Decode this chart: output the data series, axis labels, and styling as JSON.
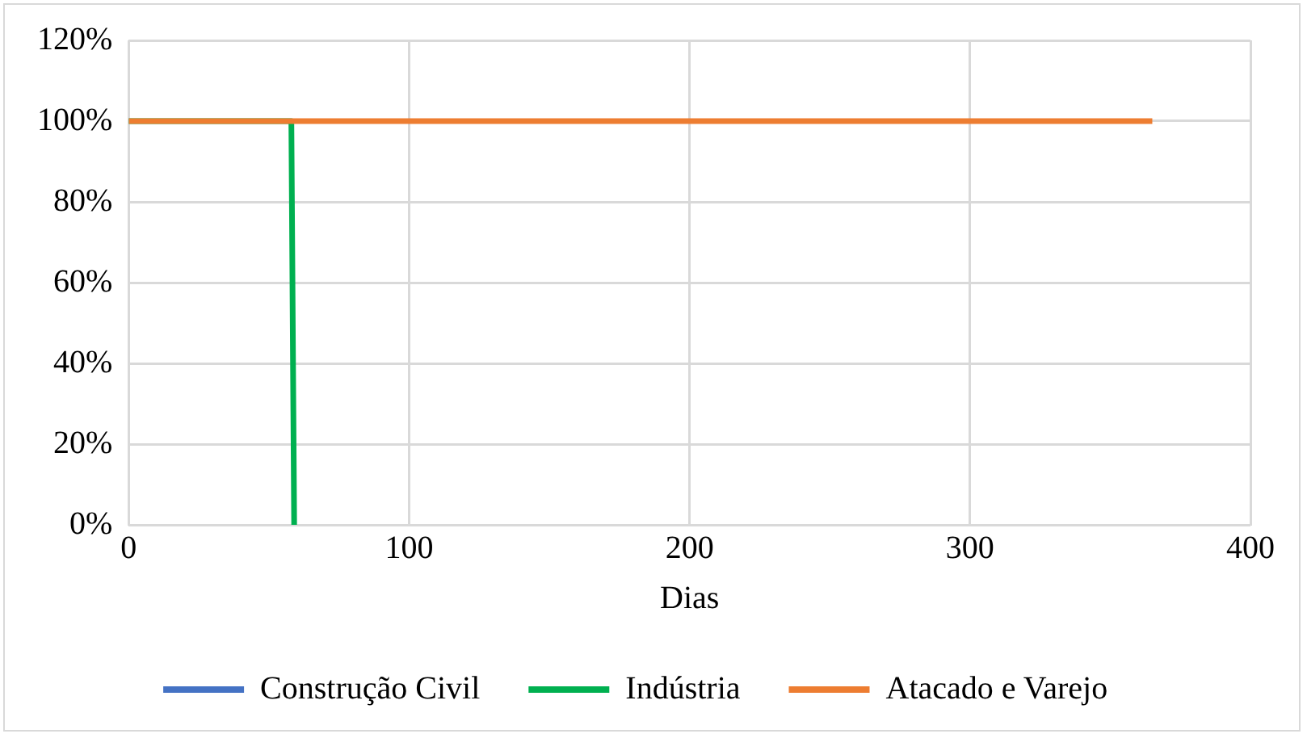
{
  "chart_data": {
    "type": "line",
    "xlabel": "Dias",
    "xlim": [
      0,
      400
    ],
    "xticks": [
      0,
      100,
      200,
      300,
      400
    ],
    "ylim": [
      0,
      120
    ],
    "yticks": [
      {
        "value": 0,
        "label": "0%"
      },
      {
        "value": 20,
        "label": "20%"
      },
      {
        "value": 40,
        "label": "40%"
      },
      {
        "value": 60,
        "label": "60%"
      },
      {
        "value": 80,
        "label": "80%"
      },
      {
        "value": 100,
        "label": "100%"
      },
      {
        "value": 120,
        "label": "120%"
      }
    ],
    "series": [
      {
        "name": "Construção Civil",
        "color": "#4472c4"
      },
      {
        "name": "Indústria",
        "color": "#00b050",
        "x": [
          0,
          58,
          59
        ],
        "values": [
          100,
          100,
          0
        ]
      },
      {
        "name": "Atacado e Varejo",
        "color": "#ed7d31",
        "x": [
          0,
          365
        ],
        "values": [
          100,
          100
        ]
      }
    ],
    "grid": true,
    "legend": "bottom",
    "marker": "none",
    "line_style": "solid"
  }
}
